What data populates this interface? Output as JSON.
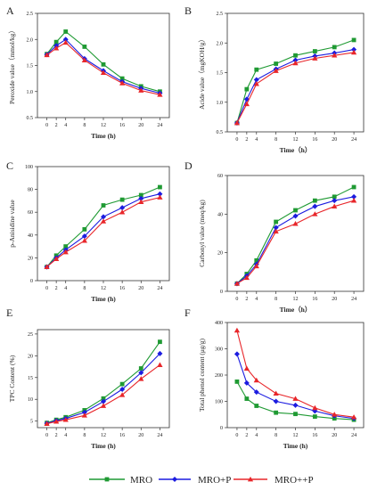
{
  "legend": [
    {
      "label": "MRO",
      "color": "#1f9a33",
      "marker": "square"
    },
    {
      "label": "MRO+P",
      "color": "#1c1ce0",
      "marker": "diamond"
    },
    {
      "label": "MRO++P",
      "color": "#e8262a",
      "marker": "triangle"
    }
  ],
  "chart_data": [
    {
      "panel": "A",
      "type": "line",
      "xlabel": "Time (h)",
      "ylabel": "Peroxide value（mmol/kg）",
      "x": [
        0,
        2,
        4,
        8,
        12,
        16,
        20,
        24
      ],
      "xticks": [
        0,
        2,
        4,
        8,
        12,
        16,
        20,
        24
      ],
      "ylim": [
        0.5,
        2.5
      ],
      "yticks": [
        0.5,
        1.0,
        1.5,
        2.0,
        2.5
      ],
      "ytick_labels": [
        "0.5",
        "1.0",
        "1.5",
        "2.0",
        "2.5"
      ],
      "series": [
        {
          "name": "MRO",
          "values": [
            1.72,
            1.95,
            2.15,
            1.86,
            1.52,
            1.25,
            1.1,
            1.0
          ]
        },
        {
          "name": "MRO+P",
          "values": [
            1.71,
            1.88,
            2.0,
            1.63,
            1.4,
            1.19,
            1.06,
            0.97
          ]
        },
        {
          "name": "MRO++P",
          "values": [
            1.7,
            1.83,
            1.94,
            1.6,
            1.36,
            1.16,
            1.02,
            0.94
          ]
        }
      ]
    },
    {
      "panel": "B",
      "type": "line",
      "xlabel": "Time（h）",
      "ylabel": "Acide value（mgKOH/g）",
      "x": [
        0,
        2,
        4,
        8,
        12,
        16,
        20,
        24
      ],
      "xticks": [
        0,
        2,
        4,
        8,
        12,
        16,
        20,
        24
      ],
      "ylim": [
        0.5,
        2.5
      ],
      "yticks": [
        0.5,
        1.0,
        1.5,
        2.0,
        2.5
      ],
      "ytick_labels": [
        "0.5",
        "1.0",
        "1.5",
        "2.0",
        "2.5"
      ],
      "series": [
        {
          "name": "MRO",
          "values": [
            0.65,
            1.22,
            1.55,
            1.65,
            1.79,
            1.86,
            1.93,
            2.05
          ]
        },
        {
          "name": "MRO+P",
          "values": [
            0.65,
            1.05,
            1.38,
            1.56,
            1.71,
            1.78,
            1.83,
            1.89
          ]
        },
        {
          "name": "MRO++P",
          "values": [
            0.65,
            0.97,
            1.31,
            1.53,
            1.66,
            1.74,
            1.79,
            1.84
          ]
        }
      ]
    },
    {
      "panel": "C",
      "type": "line",
      "xlabel": "Time (h)",
      "ylabel": "p-Anisidine value",
      "x": [
        0,
        2,
        4,
        8,
        12,
        16,
        20,
        24
      ],
      "xticks": [
        0,
        2,
        4,
        8,
        12,
        16,
        20,
        24
      ],
      "ylim": [
        0,
        100
      ],
      "yticks": [
        0,
        20,
        40,
        60,
        80,
        100
      ],
      "ytick_labels": [
        "0",
        "20",
        "40",
        "60",
        "80",
        "100"
      ],
      "series": [
        {
          "name": "MRO",
          "values": [
            12,
            22,
            30,
            45,
            66,
            71,
            75,
            82
          ]
        },
        {
          "name": "MRO+P",
          "values": [
            12,
            20,
            27,
            39,
            56,
            64,
            72,
            76
          ]
        },
        {
          "name": "MRO++P",
          "values": [
            12,
            19,
            25,
            35,
            52,
            60,
            69,
            73
          ]
        }
      ]
    },
    {
      "panel": "D",
      "type": "line",
      "xlabel": "Time（h）",
      "ylabel": "Carbonyl value (meq/kg)",
      "x": [
        0,
        2,
        4,
        8,
        12,
        16,
        20,
        24
      ],
      "xticks": [
        0,
        2,
        4,
        8,
        12,
        16,
        20,
        24
      ],
      "ylim": [
        0,
        60
      ],
      "yticks": [
        0,
        20,
        40,
        60
      ],
      "ytick_labels": [
        "0",
        "20",
        "40",
        "60"
      ],
      "series": [
        {
          "name": "MRO",
          "values": [
            4,
            9,
            16,
            36,
            42,
            47,
            49,
            54
          ]
        },
        {
          "name": "MRO+P",
          "values": [
            4,
            8,
            14,
            33,
            39,
            44,
            47,
            49
          ]
        },
        {
          "name": "MRO++P",
          "values": [
            4,
            7,
            13,
            31,
            35,
            40,
            44,
            47
          ]
        }
      ]
    },
    {
      "panel": "E",
      "type": "line",
      "xlabel": "Time (h)",
      "ylabel": "TPC Content (%)",
      "x": [
        0,
        2,
        4,
        8,
        12,
        16,
        20,
        24
      ],
      "xticks": [
        0,
        2,
        4,
        8,
        12,
        16,
        20,
        24
      ],
      "ylim": [
        3.5,
        26
      ],
      "yticks": [
        5,
        10,
        15,
        20,
        25
      ],
      "ytick_labels": [
        "5",
        "10",
        "15",
        "20",
        "25"
      ],
      "series": [
        {
          "name": "MRO",
          "values": [
            4.6,
            5.3,
            5.9,
            7.5,
            10.2,
            13.5,
            17.1,
            23.2
          ]
        },
        {
          "name": "MRO+P",
          "values": [
            4.5,
            5.1,
            5.6,
            7.0,
            9.5,
            12.3,
            16.1,
            20.5
          ]
        },
        {
          "name": "MRO++P",
          "values": [
            4.4,
            4.9,
            5.3,
            6.3,
            8.5,
            11.0,
            14.7,
            17.9
          ]
        }
      ]
    },
    {
      "panel": "F",
      "type": "line",
      "xlabel": "Time (h)",
      "ylabel": "Total phenol content (μg/g)",
      "x": [
        0,
        2,
        4,
        8,
        12,
        16,
        20,
        24
      ],
      "xticks": [
        0,
        2,
        4,
        8,
        12,
        16,
        20,
        24
      ],
      "ylim": [
        0,
        400
      ],
      "yticks": [
        0,
        100,
        200,
        300,
        400
      ],
      "ytick_labels": [
        "0",
        "100",
        "200",
        "300",
        "400"
      ],
      "series": [
        {
          "name": "MRO",
          "values": [
            175,
            110,
            83,
            57,
            52,
            42,
            35,
            30
          ]
        },
        {
          "name": "MRO+P",
          "values": [
            280,
            170,
            135,
            100,
            85,
            63,
            45,
            35
          ]
        },
        {
          "name": "MRO++P",
          "values": [
            370,
            225,
            180,
            130,
            110,
            75,
            50,
            40
          ]
        }
      ]
    }
  ]
}
